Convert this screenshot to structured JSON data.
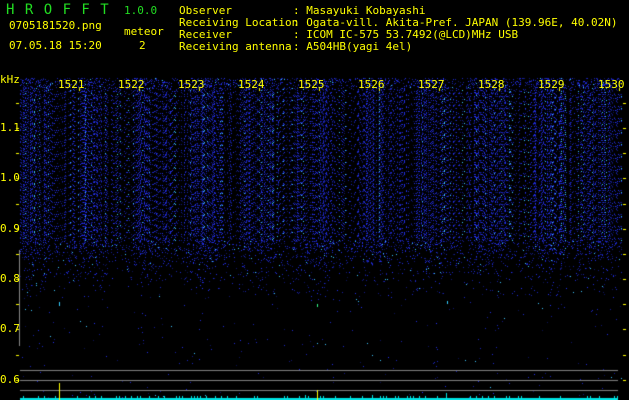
{
  "header": {
    "app_name": "H R O F F T",
    "version": "1.0.0",
    "filename": "0705181520.png",
    "datetime": "07.05.18 15:20",
    "meteor_label": "meteor",
    "meteor_count": "2"
  },
  "station": [
    {
      "label": "Observer",
      "value": ": Masayuki Kobayashi"
    },
    {
      "label": "Receiving Location",
      "value": ": Ogata-vill. Akita-Pref. JAPAN (139.96E, 40.02N)"
    },
    {
      "label": "Receiver",
      "value": ": ICOM IC-575 53.7492(@LCD)MHz USB"
    },
    {
      "label": "Receiving antenna",
      "value": ": A504HB(yagi 4el)"
    }
  ],
  "spectrogram": {
    "y_unit": "kHz",
    "y_ticks": [
      "1.1",
      "1.0",
      "0.9",
      "0.8",
      "0.7",
      "0.6"
    ],
    "time_ticks": [
      "1521",
      "1522",
      "1523",
      "1524",
      "1525",
      "1526",
      "1527",
      "1528",
      "1529",
      "1530"
    ],
    "colors": {
      "text": "#ffff00",
      "title": "#22dd22",
      "noise": "#2030ff",
      "baseline": "#00e5e5",
      "grid": "#808080"
    }
  }
}
